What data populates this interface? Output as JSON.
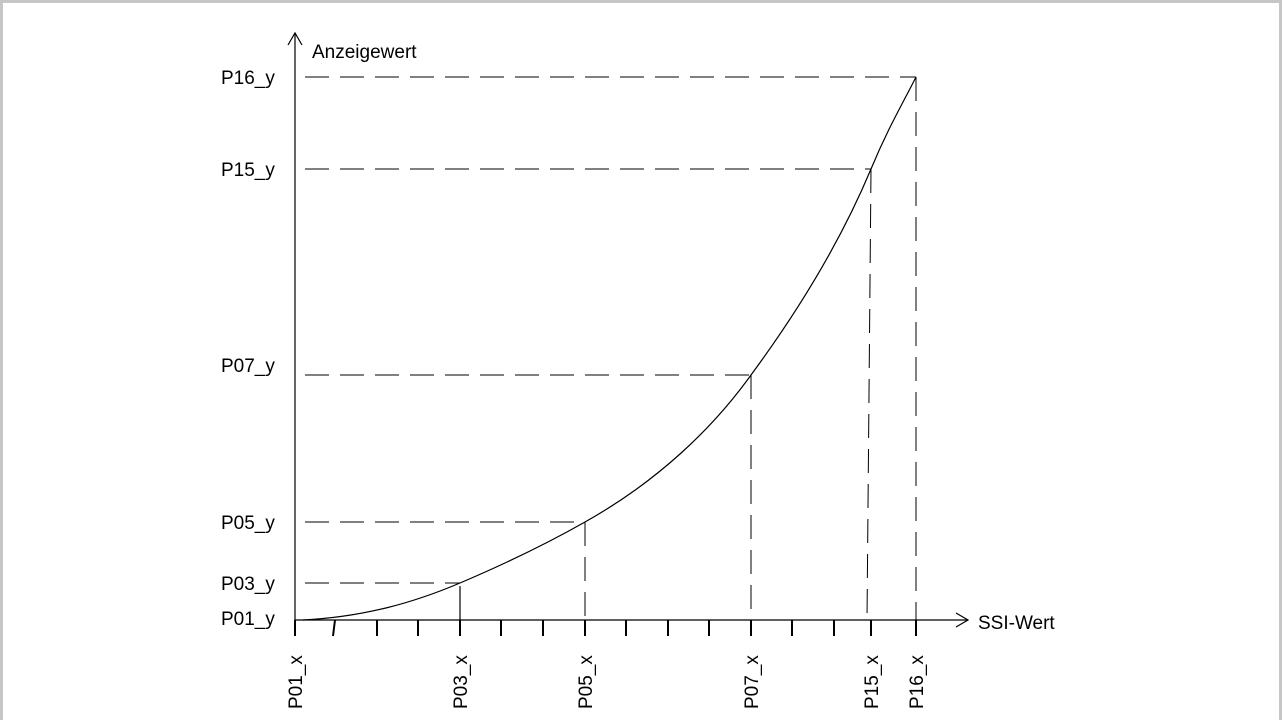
{
  "chart_data": {
    "type": "line",
    "ylabel": "Anzeigewert",
    "xlabel": "SSI-Wert",
    "y_point_labels": [
      "P16_y",
      "P15_y",
      "P07_y",
      "P05_y",
      "P03_y",
      "P01_y"
    ],
    "x_point_labels": [
      "P01_x",
      "P03_x",
      "P05_x",
      "P07_x",
      "P15_x",
      "P16_x"
    ]
  }
}
